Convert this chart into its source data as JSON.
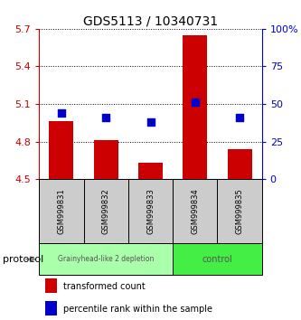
{
  "title": "GDS5113 / 10340731",
  "samples": [
    "GSM999831",
    "GSM999832",
    "GSM999833",
    "GSM999834",
    "GSM999835"
  ],
  "transformed_counts": [
    4.96,
    4.81,
    4.63,
    5.65,
    4.74
  ],
  "percentile_ranks": [
    44,
    41,
    38,
    51,
    41
  ],
  "ymin": 4.5,
  "ymax": 5.7,
  "yticks": [
    4.5,
    4.8,
    5.1,
    5.4,
    5.7
  ],
  "ytick_labels": [
    "4.5",
    "4.8",
    "5.1",
    "5.4",
    "5.7"
  ],
  "y2min": 0,
  "y2max": 100,
  "y2ticks": [
    0,
    25,
    50,
    75,
    100
  ],
  "y2tick_labels": [
    "0",
    "25",
    "50",
    "75",
    "100%"
  ],
  "bar_color": "#cc0000",
  "dot_color": "#0000cc",
  "bar_bottom": 4.5,
  "groups": [
    {
      "label": "Grainyhead-like 2 depletion",
      "indices": [
        0,
        1,
        2
      ],
      "color": "#aaffaa"
    },
    {
      "label": "control",
      "indices": [
        3,
        4
      ],
      "color": "#44ee44"
    }
  ],
  "protocol_label": "protocol",
  "legend_items": [
    {
      "color": "#cc0000",
      "label": "transformed count"
    },
    {
      "color": "#0000cc",
      "label": "percentile rank within the sample"
    }
  ],
  "background_color": "#ffffff",
  "sample_box_color": "#cccccc",
  "dot_size": 28,
  "figwidth": 3.33,
  "figheight": 3.54,
  "dpi": 100
}
